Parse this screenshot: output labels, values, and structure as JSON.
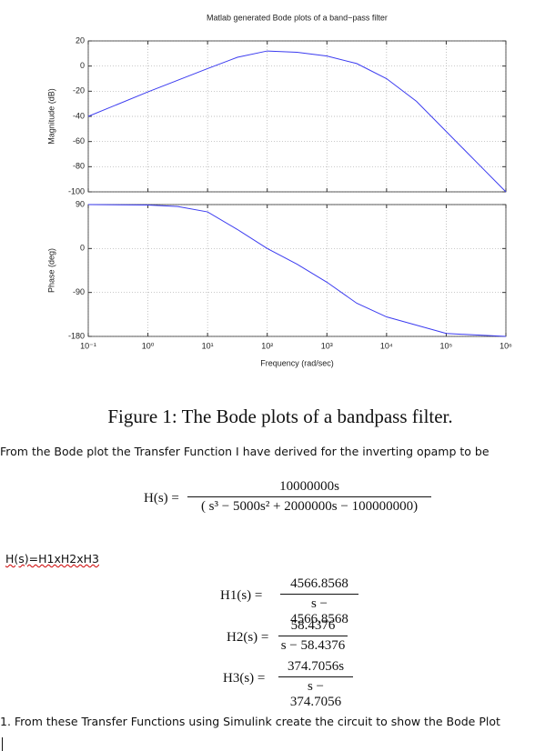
{
  "chart_data": [
    {
      "type": "line",
      "title": "Matlab generated Bode plots of a band−pass filter",
      "ylabel": "Magnitude (dB)",
      "x": [
        0.1,
        1,
        10,
        31.6,
        100,
        316,
        1000,
        3162,
        10000,
        31623,
        100000,
        316228,
        1000000
      ],
      "series": [
        {
          "name": "Magnitude",
          "color": "#3b3bf0",
          "values": [
            -40,
            -20.5,
            -2,
            7,
            12,
            11,
            8,
            2,
            -10,
            -28,
            -52,
            -76,
            -100
          ]
        }
      ],
      "xlim": [
        0.1,
        1000000
      ],
      "xticks": [
        0.1,
        1,
        10,
        100,
        1000,
        10000,
        100000,
        1000000
      ],
      "ylim": [
        -100,
        20
      ],
      "yticks": [
        -100,
        -80,
        -60,
        -40,
        -20,
        0,
        20
      ],
      "log_x": true,
      "grid": true
    },
    {
      "type": "line",
      "ylabel": "Phase (deg)",
      "xlabel": "Frequency (rad/sec)",
      "x": [
        0.1,
        1,
        3.16,
        10,
        31.6,
        100,
        316,
        1000,
        3162,
        10000,
        100000,
        1000000
      ],
      "series": [
        {
          "name": "Phase",
          "color": "#3b3bf0",
          "values": [
            90,
            89,
            86,
            75,
            39,
            0,
            -32,
            -69,
            -112,
            -140,
            -174,
            -180
          ]
        }
      ],
      "xlim": [
        0.1,
        1000000
      ],
      "xticks": [
        {
          "value": 0.1,
          "label": "10⁻¹"
        },
        {
          "value": 1,
          "label": "10⁰"
        },
        {
          "value": 10,
          "label": "10¹"
        },
        {
          "value": 100,
          "label": "10²"
        },
        {
          "value": 1000,
          "label": "10³"
        },
        {
          "value": 10000,
          "label": "10⁴"
        },
        {
          "value": 100000,
          "label": "10⁵"
        },
        {
          "value": 1000000,
          "label": "10⁶"
        }
      ],
      "ylim": [
        -180,
        90
      ],
      "yticks": [
        -180,
        -90,
        0,
        90
      ],
      "log_x": true,
      "grid": true
    }
  ],
  "document": {
    "caption": "Figure 1: The Bode plots of a bandpass filter.",
    "intro": "From the Bode plot the Transfer Function I have derived for the inverting opamp to be",
    "transfer": {
      "label": "H(s) =",
      "numerator": "10000000s",
      "denominator": "( s³ − 5000s² + 2000000s − 100000000)"
    },
    "product": "H(s)=H1xH2xH3",
    "factors": [
      {
        "label": "H1(s) =",
        "numerator": "4566.8568",
        "denominator": "s − 4566.8568"
      },
      {
        "label": "H2(s) =",
        "numerator": "58.4376",
        "denominator": "s − 58.4376"
      },
      {
        "label": "H3(s) =",
        "numerator": "374.7056s",
        "denominator": "s − 374.7056"
      }
    ],
    "task": "1. From these Transfer Functions using Simulink create the circuit to show the Bode Plot"
  }
}
